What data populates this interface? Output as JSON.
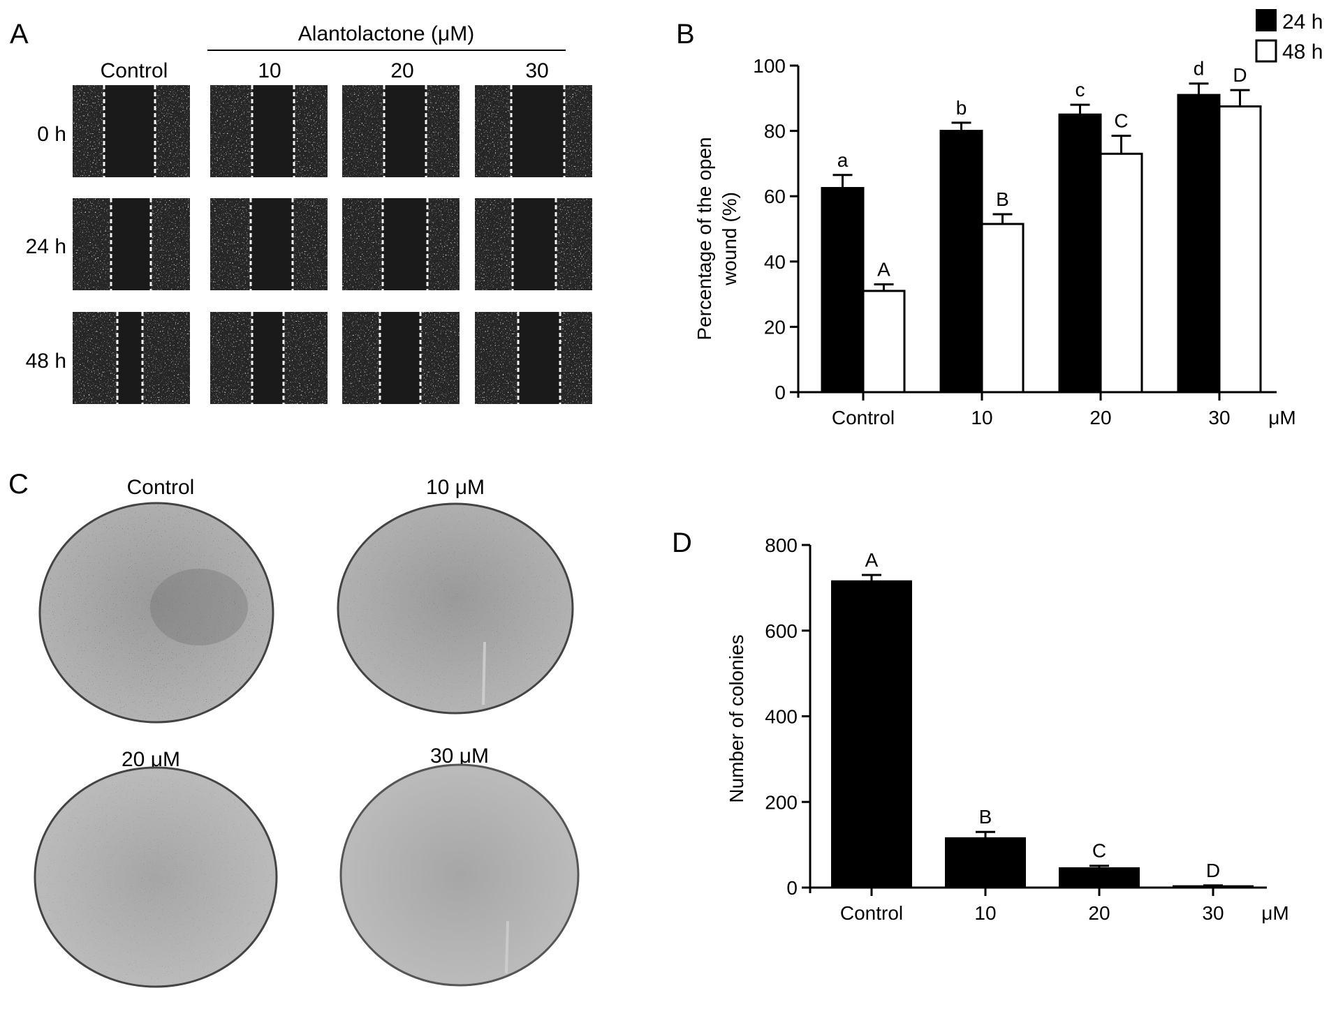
{
  "panel_a": {
    "letter": "A",
    "group_label": "Alantolactone (μM)",
    "columns": [
      "Control",
      "10",
      "20",
      "30"
    ],
    "rows": [
      "0 h",
      "24 h",
      "48 h"
    ]
  },
  "panel_c": {
    "letter": "C",
    "dishes": [
      "Control",
      "10 μM",
      "20 μM",
      "30 μM"
    ]
  },
  "chart_data": [
    {
      "panel": "B",
      "type": "bar",
      "categories": [
        "Control",
        "10",
        "20",
        "30"
      ],
      "x_unit_label": "μM",
      "ylabel": "Percentage of the open wound (%)",
      "ylim": [
        0,
        100
      ],
      "yticks": [
        0,
        20,
        40,
        60,
        80,
        100
      ],
      "legend": "top-right",
      "series": [
        {
          "name": "24 h",
          "color": "#000000",
          "values": [
            62.5,
            80,
            85,
            91
          ],
          "errors": [
            4,
            2.5,
            3,
            3.5
          ],
          "labels": [
            "a",
            "b",
            "c",
            "d"
          ]
        },
        {
          "name": "48 h",
          "color": "#ffffff",
          "values": [
            31,
            51.5,
            73,
            87.5
          ],
          "errors": [
            2,
            3,
            5.5,
            5
          ],
          "labels": [
            "A",
            "B",
            "C",
            "D"
          ]
        }
      ]
    },
    {
      "panel": "D",
      "type": "bar",
      "categories": [
        "Control",
        "10",
        "20",
        "30"
      ],
      "x_unit_label": "μM",
      "ylabel": "Number of colonies",
      "ylim": [
        0,
        800
      ],
      "yticks": [
        0,
        200,
        400,
        600,
        800
      ],
      "series": [
        {
          "color": "#000000",
          "values": [
            715,
            115,
            45,
            3
          ],
          "errors": [
            15,
            15,
            6,
            2
          ],
          "labels": [
            "A",
            "B",
            "C",
            "D"
          ]
        }
      ]
    }
  ]
}
